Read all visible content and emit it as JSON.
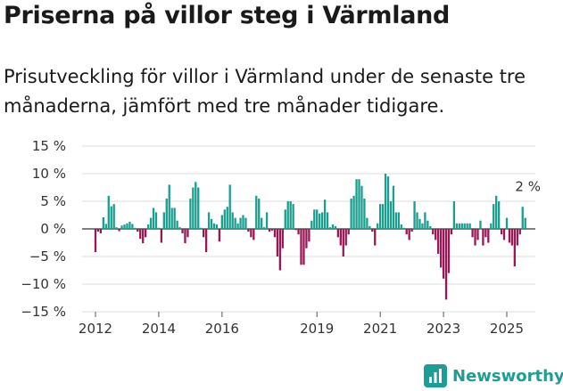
{
  "chart_data": {
    "type": "bar",
    "title": "Priserna på villor steg i Värmland",
    "subtitle": "Prisutveckling för villor i Värmland under de senaste tre månaderna, jämfört med tre månader tidigare.",
    "xlabel": "",
    "ylabel": "",
    "ylim": [
      -15,
      15
    ],
    "y_ticks": [
      -15,
      -10,
      -5,
      0,
      5,
      10,
      15
    ],
    "y_tick_labels": [
      "−15 %",
      "−10 %",
      "−5 %",
      "0 %",
      "5 %",
      "10 %",
      "15 %"
    ],
    "x_ticks": [
      2012,
      2014,
      2016,
      2019,
      2021,
      2023,
      2025
    ],
    "x_tick_labels": [
      "2012",
      "2014",
      "2016",
      "2019",
      "2021",
      "2023",
      "2025"
    ],
    "grid": "horizontal",
    "positive_color": "#1a9e8f",
    "negative_color": "#9b1656",
    "annotation": "2 %",
    "series": [
      {
        "start_year": 2012,
        "start_month": 1,
        "values": [
          -4.2,
          -0.5,
          -0.8,
          2.1,
          0.9,
          6.0,
          4.1,
          4.5,
          0.3,
          -0.4,
          0.6,
          0.8,
          1.0,
          1.3,
          0.9,
          0.2,
          -0.5,
          -1.8,
          -2.6,
          -1.5,
          0.8,
          2.0,
          3.8,
          3.0,
          0.2,
          -2.5,
          3.0,
          5.5,
          8.0,
          3.8,
          3.8,
          1.5,
          0.3,
          -0.8,
          -2.6,
          -1.5,
          5.5,
          7.5,
          8.5,
          7.5,
          0.2,
          -1.5,
          -4.2,
          3.0,
          1.8,
          1.0,
          0.8,
          -2.3,
          2.5,
          3.5,
          4.0,
          8.0,
          3.0,
          2.0,
          1.0,
          2.0,
          2.5,
          2.0,
          -0.5,
          -1.5,
          -2.0,
          6.0,
          5.5,
          2.0,
          0.3,
          3.0,
          -0.5,
          -0.3,
          -1.5,
          -5.0,
          -7.5,
          -3.5,
          3.5,
          5.0,
          5.0,
          4.5,
          -0.2,
          -1.0,
          -6.5,
          -6.5,
          -3.5,
          -2.3,
          1.5,
          3.5,
          3.5,
          2.8,
          3.0,
          5.3,
          3.0,
          0.3,
          0.8,
          0.5,
          -1.5,
          -3.0,
          -5.0,
          -3.0,
          -1.0,
          5.5,
          6.0,
          9.0,
          9.0,
          7.8,
          5.5,
          2.0,
          0.5,
          -0.5,
          -3.0,
          1.0,
          4.5,
          4.5,
          10.0,
          9.5,
          5.0,
          7.8,
          3.0,
          3.0,
          0.8,
          0.2,
          -1.0,
          -2.0,
          -0.5,
          5.0,
          3.0,
          1.8,
          1.0,
          3.0,
          1.5,
          0.5,
          -1.0,
          -2.0,
          -4.5,
          -7.0,
          -9.0,
          -12.8,
          -8.0,
          -1.0,
          5.0,
          1.0,
          1.0,
          1.0,
          1.0,
          1.0,
          1.0,
          -1.5,
          -3.0,
          -2.0,
          1.5,
          -3.0,
          -1.5,
          -2.5,
          1.0,
          4.5,
          6.0,
          5.0,
          -1.0,
          -2.0,
          2.0,
          -2.5,
          -3.0,
          -6.8,
          -3.0,
          -1.0,
          4.0,
          2.0
        ]
      }
    ]
  },
  "brand": {
    "name": "Newsworthy",
    "color": "#1d9e95",
    "icon": "newsworthy-logo-icon"
  }
}
